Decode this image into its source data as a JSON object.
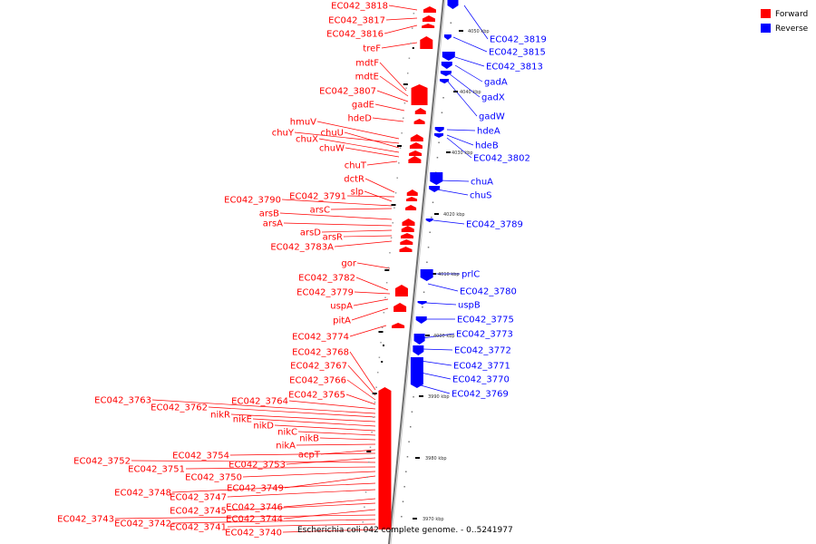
{
  "footer_text": "Escherichia coli 042 complete genome. - 0..5241977",
  "legend": [
    {
      "label": "Forward",
      "color": "#ff0000"
    },
    {
      "label": "Reverse",
      "color": "#0000ff"
    }
  ],
  "colors": {
    "forward": "#ff0000",
    "reverse": "#0000ff",
    "axis": "#888888"
  },
  "ticks": [
    {
      "label": "4050 kbp",
      "pos": 4050
    },
    {
      "label": "4040 kbp",
      "pos": 4040
    },
    {
      "label": "4030 kbp",
      "pos": 4030
    },
    {
      "label": "4020 kbp",
      "pos": 4020
    },
    {
      "label": "4010 kbp",
      "pos": 4010
    },
    {
      "label": "4000 kbp",
      "pos": 4000
    },
    {
      "label": "3990 kbp",
      "pos": 3990
    },
    {
      "label": "3980 kbp",
      "pos": 3980
    },
    {
      "label": "3970 kbp",
      "pos": 3970
    }
  ],
  "forward_genes": [
    "EC042_3818",
    "EC042_3817",
    "EC042_3816",
    "treF",
    "mdtF",
    "mdtE",
    "EC042_3807",
    "gadE",
    "hdeD",
    "hmuV",
    "chuY",
    "chuU",
    "chuX",
    "chuW",
    "chuT",
    "dctR",
    "EC042_3791",
    "slp",
    "EC042_3790",
    "arsC",
    "arsB",
    "arsA",
    "arsD",
    "arsR",
    "EC042_3783A",
    "gor",
    "EC042_3782",
    "EC042_3779",
    "uspA",
    "pitA",
    "EC042_3774",
    "EC042_3768",
    "EC042_3767",
    "EC042_3766",
    "EC042_3765",
    "EC042_3764",
    "EC042_3763",
    "EC042_3762",
    "nikR",
    "nikE",
    "nikD",
    "nikC",
    "nikB",
    "nikA",
    "acpT",
    "EC042_3754",
    "EC042_3753",
    "EC042_3752",
    "EC042_3751",
    "EC042_3750",
    "EC042_3749",
    "EC042_3748",
    "EC042_3747",
    "EC042_3746",
    "EC042_3745",
    "EC042_3744",
    "EC042_3743",
    "EC042_3742",
    "EC042_3741",
    "EC042_3740"
  ],
  "reverse_genes": [
    "EC042_3819",
    "EC042_3815",
    "EC042_3813",
    "gadA",
    "gadX",
    "gadW",
    "hdeA",
    "hdeB",
    "EC042_3802",
    "chuA",
    "chuS",
    "EC042_3789",
    "prlC",
    "EC042_3780",
    "uspB",
    "EC042_3775",
    "EC042_3773",
    "EC042_3772",
    "EC042_3771",
    "EC042_3770",
    "EC042_3769"
  ]
}
